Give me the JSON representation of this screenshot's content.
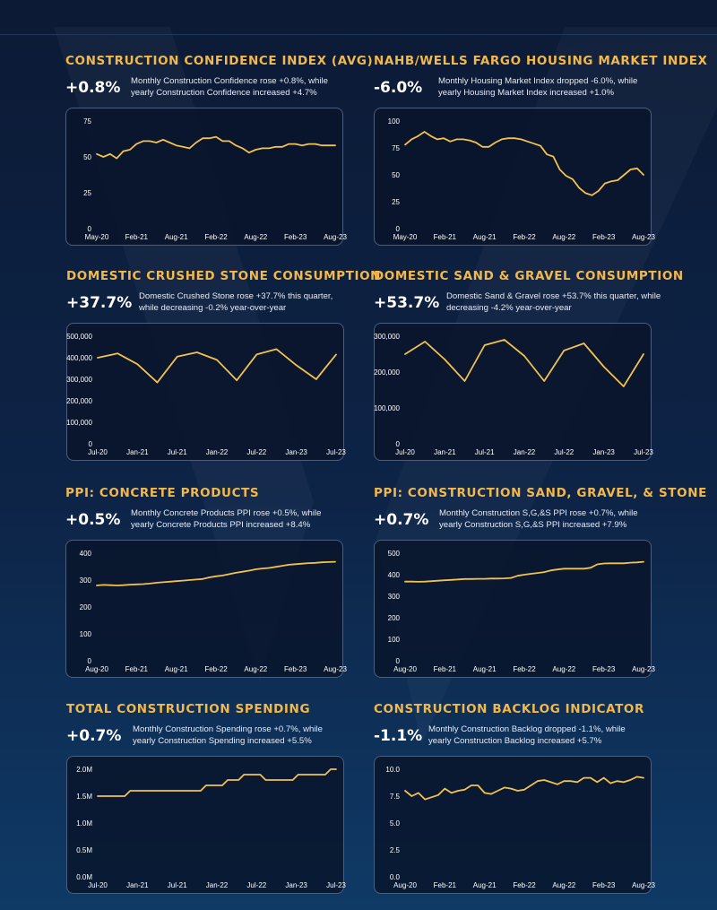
{
  "theme": {
    "accent": "#f2b84b",
    "line": "#f2c14e",
    "background": "#0d2447",
    "panel_border": "#4b5e80"
  },
  "panels": [
    {
      "title": "CONSTRUCTION CONFIDENCE INDEX (AVG)",
      "change": "+0.8%",
      "description": "Monthly Construction Confidence rose +0.8%, while yearly Construction Confidence increased +4.7%"
    },
    {
      "title": "NAHB/WELLS FARGO HOUSING MARKET INDEX",
      "change": "-6.0%",
      "description": "Monthly Housing Market Index dropped -6.0%, while yearly Housing Market Index increased +1.0%"
    },
    {
      "title": "DOMESTIC CRUSHED STONE CONSUMPTION",
      "change": "+37.7%",
      "description": "Domestic Crushed Stone rose +37.7% this quarter, while decreasing -0.2% year-over-year"
    },
    {
      "title": "DOMESTIC SAND & GRAVEL CONSUMPTION",
      "change": "+53.7%",
      "description": "Domestic Sand & Gravel rose +53.7% this quarter, while decreasing -4.2% year-over-year"
    },
    {
      "title": "PPI: CONCRETE PRODUCTS",
      "change": "+0.5%",
      "description": "Monthly Concrete Products PPI rose +0.5%, while yearly Concrete Products PPI increased +8.4%"
    },
    {
      "title": "PPI: CONSTRUCTION SAND, GRAVEL, & STONE",
      "change": "+0.7%",
      "description": "Monthly Construction S,G,&S PPI rose +0.7%, while yearly Construction S,G,&S PPI increased +7.9%"
    },
    {
      "title": "TOTAL CONSTRUCTION SPENDING",
      "change": "+0.7%",
      "description": "Monthly Construction Spending rose +0.7%, while yearly Construction Spending increased +5.5%"
    },
    {
      "title": "CONSTRUCTION BACKLOG INDICATOR",
      "change": "-1.1%",
      "description": "Monthly Construction Backlog dropped -1.1%, while yearly Construction Backlog increased +5.7%"
    }
  ],
  "chart_data": [
    {
      "type": "line",
      "grid": false,
      "ylim": [
        0,
        75
      ],
      "yticks": [
        0,
        25,
        50,
        75
      ],
      "ytick_labels": [
        "0",
        "25",
        "50",
        "75"
      ],
      "xticks": [
        "May-20",
        "Feb-21",
        "Aug-21",
        "Feb-22",
        "Aug-22",
        "Feb-23",
        "Aug-23"
      ],
      "y": [
        52,
        50,
        52,
        49,
        54,
        55,
        59,
        61,
        61,
        60,
        62,
        60,
        58,
        57,
        56,
        60,
        63,
        63,
        64,
        61,
        61,
        58,
        56,
        53,
        55,
        56,
        56,
        57,
        57,
        59,
        59,
        58,
        59,
        59,
        58,
        58,
        58
      ]
    },
    {
      "type": "line",
      "grid": false,
      "ylim": [
        0,
        100
      ],
      "yticks": [
        0,
        25,
        50,
        75,
        100
      ],
      "ytick_labels": [
        "0",
        "25",
        "50",
        "75",
        "100"
      ],
      "xticks": [
        "May-20",
        "Feb-21",
        "Aug-21",
        "Feb-22",
        "Aug-22",
        "Feb-23",
        "Aug-23"
      ],
      "y": [
        78,
        83,
        86,
        90,
        86,
        83,
        84,
        81,
        83,
        83,
        82,
        80,
        76,
        76,
        80,
        83,
        84,
        84,
        83,
        81,
        79,
        77,
        69,
        67,
        55,
        49,
        46,
        38,
        33,
        31,
        35,
        42,
        44,
        45,
        50,
        55,
        56,
        50
      ]
    },
    {
      "type": "line",
      "grid": false,
      "ylim": [
        0,
        500000
      ],
      "yticks": [
        0,
        100000,
        200000,
        300000,
        400000,
        500000
      ],
      "ytick_labels": [
        "0",
        "100,000",
        "200,000",
        "300,000",
        "400,000",
        "500,000"
      ],
      "xticks": [
        "Jul-20",
        "Jan-21",
        "Jul-21",
        "Jan-22",
        "Jul-22",
        "Jan-23",
        "Jul-23"
      ],
      "y": [
        400000,
        420000,
        370000,
        285000,
        405000,
        425000,
        390000,
        295000,
        415000,
        440000,
        365000,
        300000,
        415000
      ]
    },
    {
      "type": "line",
      "grid": false,
      "ylim": [
        0,
        300000
      ],
      "yticks": [
        0,
        100000,
        200000,
        300000
      ],
      "ytick_labels": [
        "0",
        "100,000",
        "200,000",
        "300,000"
      ],
      "xticks": [
        "Jul-20",
        "Jan-21",
        "Jul-21",
        "Jan-22",
        "Jul-22",
        "Jan-23",
        "Jul-23"
      ],
      "y": [
        250000,
        285000,
        235000,
        175000,
        275000,
        290000,
        245000,
        175000,
        260000,
        280000,
        215000,
        160000,
        250000
      ]
    },
    {
      "type": "line",
      "grid": false,
      "ylim": [
        0,
        400
      ],
      "yticks": [
        0,
        100,
        200,
        300,
        400
      ],
      "ytick_labels": [
        "0",
        "100",
        "200",
        "300",
        "400"
      ],
      "xticks": [
        "Aug-20",
        "Feb-21",
        "Aug-21",
        "Feb-22",
        "Aug-22",
        "Feb-23",
        "Aug-23"
      ],
      "y": [
        280,
        282,
        281,
        280,
        281,
        283,
        284,
        285,
        287,
        290,
        292,
        294,
        296,
        298,
        300,
        302,
        304,
        310,
        314,
        317,
        322,
        327,
        331,
        335,
        340,
        343,
        345,
        349,
        353,
        357,
        359,
        361,
        363,
        364,
        366,
        367,
        368
      ]
    },
    {
      "type": "line",
      "grid": false,
      "ylim": [
        0,
        500
      ],
      "yticks": [
        0,
        100,
        200,
        300,
        400,
        500
      ],
      "ytick_labels": [
        "0",
        "100",
        "200",
        "300",
        "400",
        "500"
      ],
      "xticks": [
        "Aug-20",
        "Feb-21",
        "Aug-21",
        "Feb-22",
        "Aug-22",
        "Feb-23",
        "Aug-23"
      ],
      "y": [
        368,
        368,
        367,
        368,
        370,
        372,
        374,
        376,
        378,
        380,
        380,
        381,
        381,
        382,
        382,
        383,
        385,
        395,
        400,
        404,
        408,
        412,
        420,
        424,
        428,
        428,
        428,
        428,
        432,
        448,
        452,
        453,
        453,
        453,
        456,
        457,
        460
      ]
    },
    {
      "type": "line",
      "grid": false,
      "ylim": [
        0,
        2000000
      ],
      "yticks": [
        0,
        500000,
        1000000,
        1500000,
        2000000
      ],
      "ytick_labels": [
        "0.0M",
        "0.5M",
        "1.0M",
        "1.5M",
        "2.0M"
      ],
      "xticks": [
        "Jul-20",
        "Jan-21",
        "Jul-21",
        "Jan-22",
        "Jul-22",
        "Jan-23",
        "Jul-23"
      ],
      "y": [
        1500000,
        1500000,
        1500000,
        1500000,
        1500000,
        1500000,
        1600000,
        1600000,
        1600000,
        1600000,
        1600000,
        1600000,
        1600000,
        1600000,
        1600000,
        1600000,
        1600000,
        1600000,
        1600000,
        1600000,
        1700000,
        1700000,
        1700000,
        1700000,
        1800000,
        1800000,
        1800000,
        1900000,
        1900000,
        1900000,
        1900000,
        1800000,
        1800000,
        1800000,
        1800000,
        1800000,
        1800000,
        1900000,
        1900000,
        1900000,
        1900000,
        1900000,
        1900000,
        2000000,
        2000000
      ]
    },
    {
      "type": "line",
      "grid": false,
      "ylim": [
        0,
        10
      ],
      "yticks": [
        0,
        2.5,
        5,
        7.5,
        10
      ],
      "ytick_labels": [
        "0.0",
        "2.5",
        "5.0",
        "7.5",
        "10.0"
      ],
      "xticks": [
        "Aug-20",
        "Feb-21",
        "Aug-21",
        "Feb-22",
        "Aug-22",
        "Feb-23",
        "Aug-23"
      ],
      "y": [
        8.0,
        7.5,
        7.8,
        7.2,
        7.4,
        7.6,
        8.2,
        7.8,
        8.0,
        8.1,
        8.5,
        8.5,
        7.8,
        7.7,
        8.0,
        8.3,
        8.2,
        8.0,
        8.1,
        8.5,
        8.9,
        9.0,
        8.8,
        8.6,
        8.9,
        8.9,
        8.8,
        9.2,
        9.2,
        8.8,
        9.2,
        8.7,
        8.9,
        8.8,
        9.0,
        9.3,
        9.2
      ]
    }
  ]
}
